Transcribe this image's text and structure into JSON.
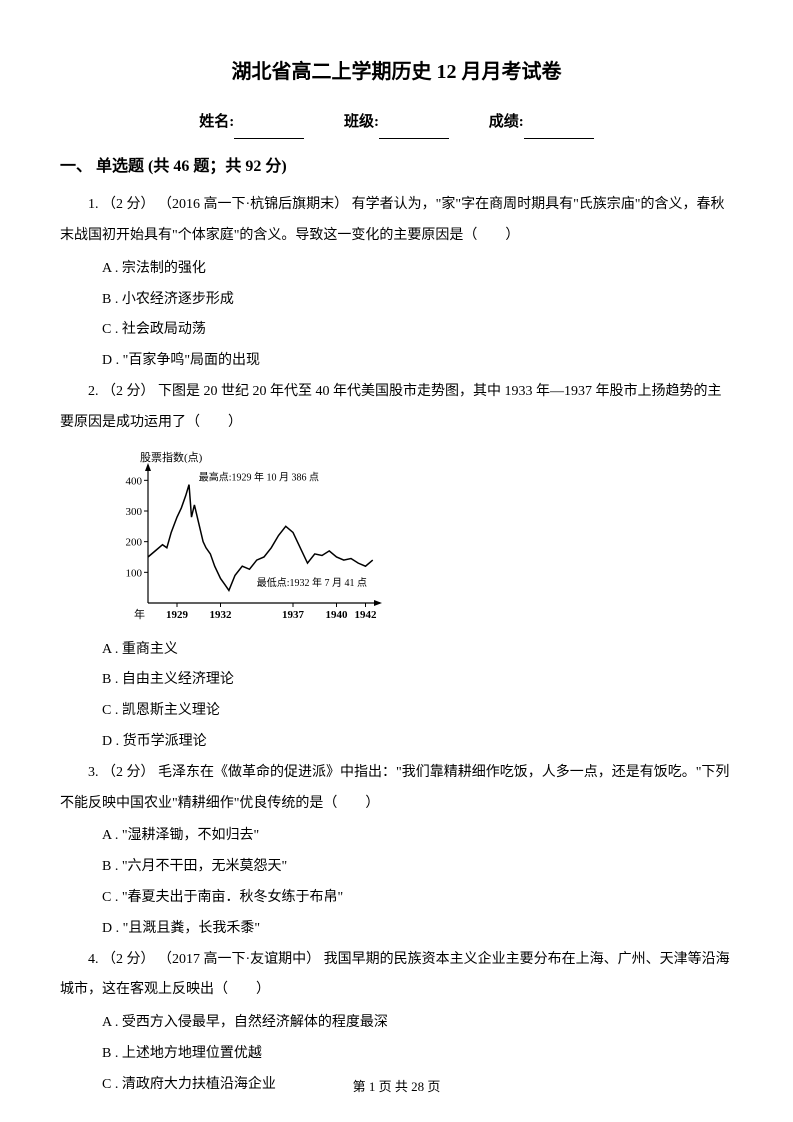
{
  "title": "湖北省高二上学期历史 12 月月考试卷",
  "info": {
    "name_label": "姓名:",
    "class_label": "班级:",
    "score_label": "成绩:"
  },
  "section": {
    "header": "一、 单选题 (共 46 题；共 92 分)"
  },
  "q1": {
    "stem": "1. （2 分） （2016 高一下·杭锦后旗期末） 有学者认为，\"家\"字在商周时期具有\"氏族宗庙\"的含义，春秋末战国初开始具有\"个体家庭\"的含义。导致这一变化的主要原因是（　　）",
    "a": "A . 宗法制的强化",
    "b": "B . 小农经济逐步形成",
    "c": "C . 社会政局动荡",
    "d": "D . \"百家争鸣\"局面的出现"
  },
  "q2": {
    "stem": "2. （2 分） 下图是 20 世纪 20 年代至 40 年代美国股市走势图，其中 1933 年—1937 年股市上扬趋势的主要原因是成功运用了（　　）",
    "a": "A . 重商主义",
    "b": "B . 自由主义经济理论",
    "c": "C . 凯恩斯主义理论",
    "d": "D . 货币学派理论"
  },
  "q3": {
    "stem": "3. （2 分） 毛泽东在《做革命的促进派》中指出：\"我们靠精耕细作吃饭，人多一点，还是有饭吃。\"下列不能反映中国农业\"精耕细作\"优良传统的是（　　）",
    "a": "A . \"湿耕泽锄，不如归去\"",
    "b": "B . \"六月不干田，无米莫怨天\"",
    "c": "C . \"春夏夫出于南亩．秋冬女练于布帛\"",
    "d": "D . \"且溉且粪，长我禾黍\""
  },
  "q4": {
    "stem": "4. （2 分） （2017 高一下·友谊期中） 我国早期的民族资本主义企业主要分布在上海、广州、天津等沿海城市，这在客观上反映出（　　）",
    "a": "A . 受西方入侵最早，自然经济解体的程度最深",
    "b": "B . 上述地方地理位置优越",
    "c": "C . 清政府大力扶植沿海企业"
  },
  "chart": {
    "type": "line",
    "y_axis_label": "股票指数(点)",
    "x_axis_label": "年",
    "annotation_high": "最高点:1929 年 10 月 386 点",
    "annotation_low": "最低点:1932 年 7 月 41 点",
    "x_ticks": [
      "1929",
      "1932",
      "1937",
      "1940",
      "1942"
    ],
    "y_ticks": [
      100,
      200,
      300,
      400
    ],
    "xlim": [
      1927,
      1943
    ],
    "ylim": [
      0,
      450
    ],
    "line_color": "#000000",
    "axis_color": "#000000",
    "background_color": "#ffffff",
    "label_fontsize": 11,
    "tick_fontsize": 11,
    "line_width": 1.5,
    "data_points": [
      {
        "x": 1927,
        "y": 150
      },
      {
        "x": 1927.5,
        "y": 170
      },
      {
        "x": 1928,
        "y": 190
      },
      {
        "x": 1928.3,
        "y": 180
      },
      {
        "x": 1928.6,
        "y": 230
      },
      {
        "x": 1929,
        "y": 280
      },
      {
        "x": 1929.3,
        "y": 310
      },
      {
        "x": 1929.6,
        "y": 350
      },
      {
        "x": 1929.83,
        "y": 386
      },
      {
        "x": 1930,
        "y": 280
      },
      {
        "x": 1930.2,
        "y": 320
      },
      {
        "x": 1930.5,
        "y": 260
      },
      {
        "x": 1930.8,
        "y": 200
      },
      {
        "x": 1931,
        "y": 180
      },
      {
        "x": 1931.3,
        "y": 160
      },
      {
        "x": 1931.6,
        "y": 120
      },
      {
        "x": 1932,
        "y": 80
      },
      {
        "x": 1932.3,
        "y": 60
      },
      {
        "x": 1932.58,
        "y": 41
      },
      {
        "x": 1933,
        "y": 90
      },
      {
        "x": 1933.5,
        "y": 120
      },
      {
        "x": 1934,
        "y": 110
      },
      {
        "x": 1934.5,
        "y": 140
      },
      {
        "x": 1935,
        "y": 150
      },
      {
        "x": 1935.5,
        "y": 180
      },
      {
        "x": 1936,
        "y": 220
      },
      {
        "x": 1936.5,
        "y": 250
      },
      {
        "x": 1937,
        "y": 230
      },
      {
        "x": 1937.5,
        "y": 180
      },
      {
        "x": 1938,
        "y": 130
      },
      {
        "x": 1938.5,
        "y": 160
      },
      {
        "x": 1939,
        "y": 155
      },
      {
        "x": 1939.5,
        "y": 170
      },
      {
        "x": 1940,
        "y": 150
      },
      {
        "x": 1940.5,
        "y": 140
      },
      {
        "x": 1941,
        "y": 145
      },
      {
        "x": 1941.5,
        "y": 130
      },
      {
        "x": 1942,
        "y": 120
      },
      {
        "x": 1942.5,
        "y": 140
      }
    ]
  },
  "footer": {
    "text": "第 1 页 共 28 页"
  }
}
